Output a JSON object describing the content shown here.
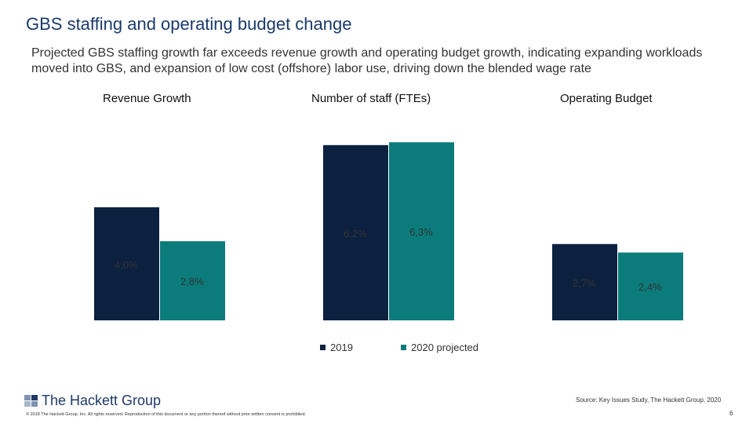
{
  "title": "GBS staffing and operating budget change",
  "subtitle": "Projected GBS staffing growth far exceeds revenue growth and operating budget growth, indicating expanding workloads moved into GBS, and expansion of low cost (offshore) labor use, driving down the blended wage rate",
  "chart_data": {
    "type": "bar",
    "categories": [
      "Revenue Growth",
      "Number of staff (FTEs)",
      "Operating Budget"
    ],
    "series": [
      {
        "name": "2019",
        "values": [
          4.0,
          6.2,
          2.7
        ],
        "labels": [
          "4,0%",
          "6,2%",
          "2,7%"
        ],
        "color": "#0c2140"
      },
      {
        "name": "2020 projected",
        "values": [
          2.8,
          6.3,
          2.4
        ],
        "labels": [
          "2,8%",
          "6,3%",
          "2,4%"
        ],
        "color": "#0b7b7b"
      }
    ],
    "legend": "bottom",
    "grid": false
  },
  "footer": {
    "logo": "The Hackett Group",
    "copyright": "© 2018 The Hackett Group, Inc. All rights reserved. Reproduction of this document or any portion thereof without prior written consent is prohibited.",
    "source": "Source: Key Issues Study, The Hackett Group, 2020",
    "page": "6"
  }
}
